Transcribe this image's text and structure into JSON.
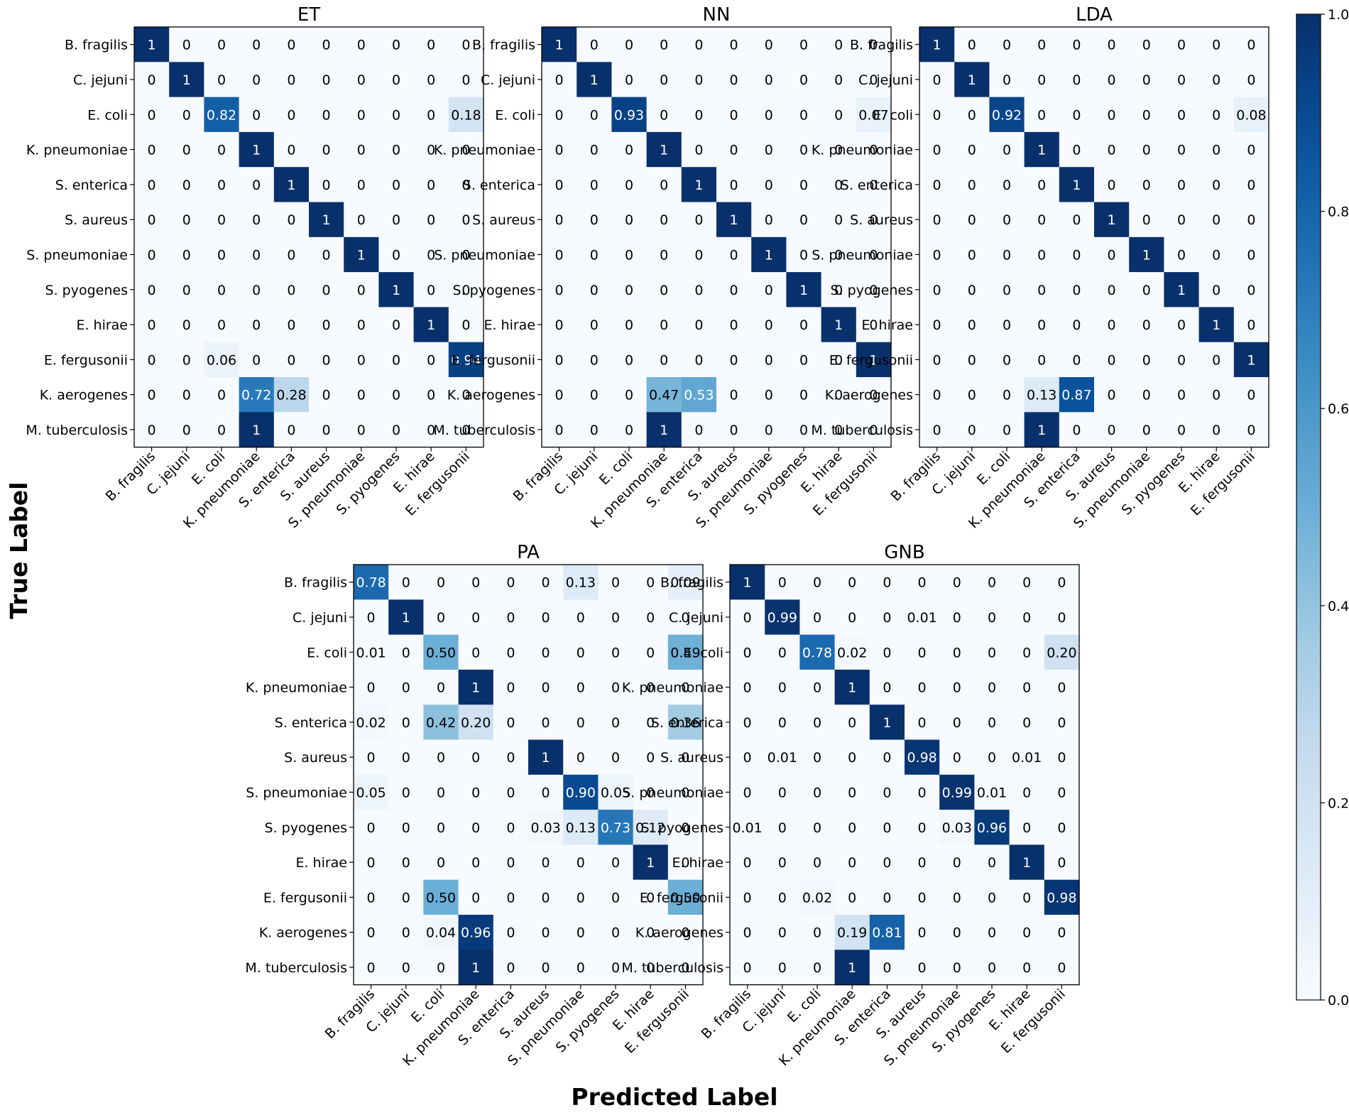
{
  "chart_data": {
    "type": "heatmap",
    "class_labels": [
      "B. fragilis",
      "C. jejuni",
      "E. coli",
      "K. pneumoniae",
      "S. enterica",
      "S. aureus",
      "S. pneumoniae",
      "S. pyogenes",
      "E. hirae",
      "E. fergusonii",
      "K. aerogenes",
      "M. tuberculosis"
    ],
    "predicted_labels": [
      "B. fragilis",
      "C. jejuni",
      "E. coli",
      "K. pneumoniae",
      "S. enterica",
      "S. aureus",
      "S. pneumoniae",
      "S. pyogenes",
      "E. hirae",
      "E. fergusonii"
    ],
    "xlabel": "Predicted Label",
    "ylabel": "True Label",
    "colorbar": {
      "range": [
        0.0,
        1.0
      ],
      "ticks": [
        "0.0",
        "0.2",
        "0.4",
        "0.6",
        "0.8",
        "1.0"
      ],
      "low_color": "#f7fbff",
      "high_color": "#08306b"
    },
    "panels": [
      {
        "title": "ET",
        "matrix": [
          [
            "1",
            "0",
            "0",
            "0",
            "0",
            "0",
            "0",
            "0",
            "0",
            "0"
          ],
          [
            "0",
            "1",
            "0",
            "0",
            "0",
            "0",
            "0",
            "0",
            "0",
            "0"
          ],
          [
            "0",
            "0",
            "0.82",
            "0",
            "0",
            "0",
            "0",
            "0",
            "0",
            "0.18"
          ],
          [
            "0",
            "0",
            "0",
            "1",
            "0",
            "0",
            "0",
            "0",
            "0",
            "0"
          ],
          [
            "0",
            "0",
            "0",
            "0",
            "1",
            "0",
            "0",
            "0",
            "0",
            "0"
          ],
          [
            "0",
            "0",
            "0",
            "0",
            "0",
            "1",
            "0",
            "0",
            "0",
            "0"
          ],
          [
            "0",
            "0",
            "0",
            "0",
            "0",
            "0",
            "1",
            "0",
            "0",
            "0"
          ],
          [
            "0",
            "0",
            "0",
            "0",
            "0",
            "0",
            "0",
            "1",
            "0",
            "0"
          ],
          [
            "0",
            "0",
            "0",
            "0",
            "0",
            "0",
            "0",
            "0",
            "1",
            "0"
          ],
          [
            "0",
            "0",
            "0.06",
            "0",
            "0",
            "0",
            "0",
            "0",
            "0",
            "0.94"
          ],
          [
            "0",
            "0",
            "0",
            "0.72",
            "0.28",
            "0",
            "0",
            "0",
            "0",
            "0"
          ],
          [
            "0",
            "0",
            "0",
            "1",
            "0",
            "0",
            "0",
            "0",
            "0",
            "0"
          ]
        ]
      },
      {
        "title": "NN",
        "matrix": [
          [
            "1",
            "0",
            "0",
            "0",
            "0",
            "0",
            "0",
            "0",
            "0",
            "0"
          ],
          [
            "0",
            "1",
            "0",
            "0",
            "0",
            "0",
            "0",
            "0",
            "0",
            "0"
          ],
          [
            "0",
            "0",
            "0.93",
            "0",
            "0",
            "0",
            "0",
            "0",
            "0",
            "0.07"
          ],
          [
            "0",
            "0",
            "0",
            "1",
            "0",
            "0",
            "0",
            "0",
            "0",
            "0"
          ],
          [
            "0",
            "0",
            "0",
            "0",
            "1",
            "0",
            "0",
            "0",
            "0",
            "0"
          ],
          [
            "0",
            "0",
            "0",
            "0",
            "0",
            "1",
            "0",
            "0",
            "0",
            "0"
          ],
          [
            "0",
            "0",
            "0",
            "0",
            "0",
            "0",
            "1",
            "0",
            "0",
            "0"
          ],
          [
            "0",
            "0",
            "0",
            "0",
            "0",
            "0",
            "0",
            "1",
            "0",
            "0"
          ],
          [
            "0",
            "0",
            "0",
            "0",
            "0",
            "0",
            "0",
            "0",
            "1",
            "0"
          ],
          [
            "0",
            "0",
            "0",
            "0",
            "0",
            "0",
            "0",
            "0",
            "0",
            "1"
          ],
          [
            "0",
            "0",
            "0",
            "0.47",
            "0.53",
            "0",
            "0",
            "0",
            "0",
            "0"
          ],
          [
            "0",
            "0",
            "0",
            "1",
            "0",
            "0",
            "0",
            "0",
            "0",
            "0"
          ]
        ]
      },
      {
        "title": "LDA",
        "matrix": [
          [
            "1",
            "0",
            "0",
            "0",
            "0",
            "0",
            "0",
            "0",
            "0",
            "0"
          ],
          [
            "0",
            "1",
            "0",
            "0",
            "0",
            "0",
            "0",
            "0",
            "0",
            "0"
          ],
          [
            "0",
            "0",
            "0.92",
            "0",
            "0",
            "0",
            "0",
            "0",
            "0",
            "0.08"
          ],
          [
            "0",
            "0",
            "0",
            "1",
            "0",
            "0",
            "0",
            "0",
            "0",
            "0"
          ],
          [
            "0",
            "0",
            "0",
            "0",
            "1",
            "0",
            "0",
            "0",
            "0",
            "0"
          ],
          [
            "0",
            "0",
            "0",
            "0",
            "0",
            "1",
            "0",
            "0",
            "0",
            "0"
          ],
          [
            "0",
            "0",
            "0",
            "0",
            "0",
            "0",
            "1",
            "0",
            "0",
            "0"
          ],
          [
            "0",
            "0",
            "0",
            "0",
            "0",
            "0",
            "0",
            "1",
            "0",
            "0"
          ],
          [
            "0",
            "0",
            "0",
            "0",
            "0",
            "0",
            "0",
            "0",
            "1",
            "0"
          ],
          [
            "0",
            "0",
            "0",
            "0",
            "0",
            "0",
            "0",
            "0",
            "0",
            "1"
          ],
          [
            "0",
            "0",
            "0",
            "0.13",
            "0.87",
            "0",
            "0",
            "0",
            "0",
            "0"
          ],
          [
            "0",
            "0",
            "0",
            "1",
            "0",
            "0",
            "0",
            "0",
            "0",
            "0"
          ]
        ]
      },
      {
        "title": "PA",
        "matrix": [
          [
            "0.78",
            "0",
            "0",
            "0",
            "0",
            "0",
            "0.13",
            "0",
            "0",
            "0.09"
          ],
          [
            "0",
            "1",
            "0",
            "0",
            "0",
            "0",
            "0",
            "0",
            "0",
            "0"
          ],
          [
            "0.01",
            "0",
            "0.50",
            "0",
            "0",
            "0",
            "0",
            "0",
            "0",
            "0.49"
          ],
          [
            "0",
            "0",
            "0",
            "1",
            "0",
            "0",
            "0",
            "0",
            "0",
            "0"
          ],
          [
            "0.02",
            "0",
            "0.42",
            "0.20",
            "0",
            "0",
            "0",
            "0",
            "0",
            "0.36"
          ],
          [
            "0",
            "0",
            "0",
            "0",
            "0",
            "1",
            "0",
            "0",
            "0",
            "0"
          ],
          [
            "0.05",
            "0",
            "0",
            "0",
            "0",
            "0",
            "0.90",
            "0.05",
            "0",
            "0"
          ],
          [
            "0",
            "0",
            "0",
            "0",
            "0",
            "0.03",
            "0.13",
            "0.73",
            "0.12",
            "0"
          ],
          [
            "0",
            "0",
            "0",
            "0",
            "0",
            "0",
            "0",
            "0",
            "1",
            "0"
          ],
          [
            "0",
            "0",
            "0.50",
            "0",
            "0",
            "0",
            "0",
            "0",
            "0",
            "0.50"
          ],
          [
            "0",
            "0",
            "0.04",
            "0.96",
            "0",
            "0",
            "0",
            "0",
            "0",
            "0"
          ],
          [
            "0",
            "0",
            "0",
            "1",
            "0",
            "0",
            "0",
            "0",
            "0",
            "0"
          ]
        ]
      },
      {
        "title": "GNB",
        "matrix": [
          [
            "1",
            "0",
            "0",
            "0",
            "0",
            "0",
            "0",
            "0",
            "0",
            "0"
          ],
          [
            "0",
            "0.99",
            "0",
            "0",
            "0",
            "0.01",
            "0",
            "0",
            "0",
            "0"
          ],
          [
            "0",
            "0",
            "0.78",
            "0.02",
            "0",
            "0",
            "0",
            "0",
            "0",
            "0.20"
          ],
          [
            "0",
            "0",
            "0",
            "1",
            "0",
            "0",
            "0",
            "0",
            "0",
            "0"
          ],
          [
            "0",
            "0",
            "0",
            "0",
            "1",
            "0",
            "0",
            "0",
            "0",
            "0"
          ],
          [
            "0",
            "0.01",
            "0",
            "0",
            "0",
            "0.98",
            "0",
            "0",
            "0.01",
            "0"
          ],
          [
            "0",
            "0",
            "0",
            "0",
            "0",
            "0",
            "0.99",
            "0.01",
            "0",
            "0"
          ],
          [
            "0.01",
            "0",
            "0",
            "0",
            "0",
            "0",
            "0.03",
            "0.96",
            "0",
            "0"
          ],
          [
            "0",
            "0",
            "0",
            "0",
            "0",
            "0",
            "0",
            "0",
            "1",
            "0"
          ],
          [
            "0",
            "0",
            "0.02",
            "0",
            "0",
            "0",
            "0",
            "0",
            "0",
            "0.98"
          ],
          [
            "0",
            "0",
            "0",
            "0.19",
            "0.81",
            "0",
            "0",
            "0",
            "0",
            "0"
          ],
          [
            "0",
            "0",
            "0",
            "1",
            "0",
            "0",
            "0",
            "0",
            "0",
            "0"
          ]
        ]
      }
    ]
  }
}
